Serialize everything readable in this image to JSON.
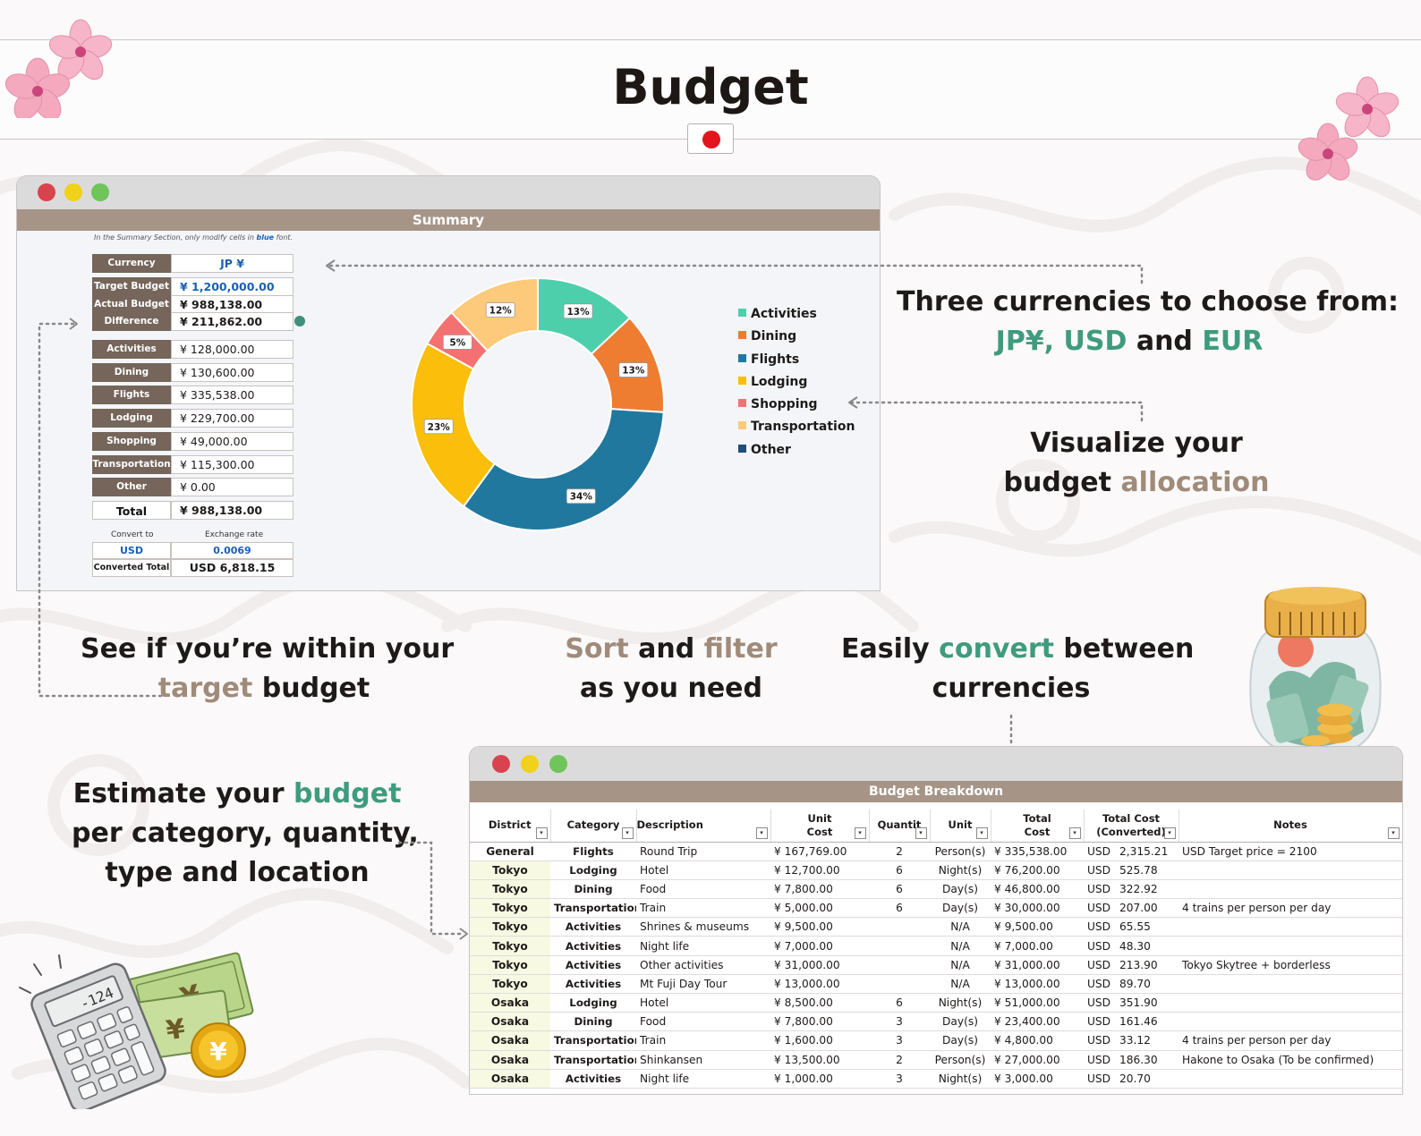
{
  "page": {
    "title": "Budget",
    "accent_teal": "#3f9b7e",
    "accent_taupe": "#a08b7a",
    "header_color": "#a69587"
  },
  "summary": {
    "window_title": "Summary",
    "note": {
      "before": "In the Summary Section, only modify cells in ",
      "highlight": "blue",
      "after": " font."
    },
    "currency": {
      "label": "Currency",
      "value": "JP ¥"
    },
    "budget": [
      {
        "label": "Target Budget",
        "value": "¥  1,200,000.00"
      },
      {
        "label": "Actual Budget",
        "value": "¥  988,138.00"
      },
      {
        "label": "Difference",
        "value": "¥  211,862.00"
      }
    ],
    "categories": [
      {
        "label": "Activities",
        "value": "¥  128,000.00"
      },
      {
        "label": "Dining",
        "value": "¥  130,600.00"
      },
      {
        "label": "Flights",
        "value": "¥  335,538.00"
      },
      {
        "label": "Lodging",
        "value": "¥  229,700.00"
      },
      {
        "label": "Shopping",
        "value": "¥  49,000.00"
      },
      {
        "label": "Transportation",
        "value": "¥  115,300.00"
      },
      {
        "label": "Other",
        "value": "¥  0.00"
      }
    ],
    "total": {
      "label": "Total",
      "value": "¥  988,138.00"
    },
    "conversion": {
      "convert_to_label": "Convert to",
      "exchange_rate_label": "Exchange rate",
      "currency": "USD",
      "rate": "0.0069",
      "converted_total_label": "Converted Total",
      "converted_total_value": "USD   6,818.15"
    }
  },
  "chart_data": {
    "type": "pie",
    "variant": "donut",
    "categories": [
      "Activities",
      "Dining",
      "Flights",
      "Lodging",
      "Shopping",
      "Transportation",
      "Other"
    ],
    "values": [
      13,
      13,
      34,
      23,
      5,
      12,
      0
    ],
    "labels": [
      "13%",
      "13%",
      "34%",
      "23%",
      "5%",
      "12%",
      ""
    ],
    "colors": [
      "#4ecfac",
      "#ee7d31",
      "#21789f",
      "#fbbe0a",
      "#f37271",
      "#fdc97b",
      "#1f4e79"
    ],
    "legend_position": "right"
  },
  "callouts": {
    "currencies": {
      "line1": "Three currencies to choose from:",
      "opt1": "JP¥, USD",
      "and": " and ",
      "opt2": "EUR"
    },
    "visualize": {
      "line1": "Visualize your",
      "line2a": "budget ",
      "line2b": "allocation"
    },
    "within": {
      "line1": "See if you’re within your",
      "line2a": "target",
      "line2b": " budget"
    },
    "sort": {
      "w1": "Sort",
      "w2": " and ",
      "w3": "filter",
      "line2": "as you need"
    },
    "convert": {
      "line1a": "Easily ",
      "line1b": "convert",
      "line1c": " between",
      "line2": "currencies"
    },
    "estimate": {
      "line1a": "Estimate your ",
      "line1b": "budget",
      "line2": "per category, quantity,",
      "line3": "type and location"
    }
  },
  "breakdown": {
    "window_title": "Budget Breakdown",
    "columns": [
      {
        "l1": "District",
        "l2": ""
      },
      {
        "l1": "Category",
        "l2": ""
      },
      {
        "l1": "Description",
        "l2": ""
      },
      {
        "l1": "Unit",
        "l2": "Cost"
      },
      {
        "l1": "Quantit",
        "l2": ""
      },
      {
        "l1": "Unit",
        "l2": ""
      },
      {
        "l1": "Total",
        "l2": "Cost"
      },
      {
        "l1": "Total Cost",
        "l2": "(Converted)"
      },
      {
        "l1": "Notes",
        "l2": ""
      }
    ],
    "rows": [
      {
        "district": "General",
        "category": "Flights",
        "description": "Round Trip",
        "unit_cost": "¥  167,769.00",
        "qty": "2",
        "unit": "Person(s)",
        "total": "¥  335,538.00",
        "conv_cur": "USD",
        "conv_val": "2,315.21",
        "notes": "USD Target price = 2100"
      },
      {
        "district": "Tokyo",
        "category": "Lodging",
        "description": "Hotel",
        "unit_cost": "¥  12,700.00",
        "qty": "6",
        "unit": "Night(s)",
        "total": "¥  76,200.00",
        "conv_cur": "USD",
        "conv_val": "525.78",
        "notes": ""
      },
      {
        "district": "Tokyo",
        "category": "Dining",
        "description": "Food",
        "unit_cost": "¥  7,800.00",
        "qty": "6",
        "unit": "Day(s)",
        "total": "¥  46,800.00",
        "conv_cur": "USD",
        "conv_val": "322.92",
        "notes": ""
      },
      {
        "district": "Tokyo",
        "category": "Transportation",
        "description": "Train",
        "unit_cost": "¥  5,000.00",
        "qty": "6",
        "unit": "Day(s)",
        "total": "¥  30,000.00",
        "conv_cur": "USD",
        "conv_val": "207.00",
        "notes": "4 trains per person per day"
      },
      {
        "district": "Tokyo",
        "category": "Activities",
        "description": "Shrines & museums",
        "unit_cost": "¥  9,500.00",
        "qty": "",
        "unit": "N/A",
        "total": "¥  9,500.00",
        "conv_cur": "USD",
        "conv_val": "65.55",
        "notes": ""
      },
      {
        "district": "Tokyo",
        "category": "Activities",
        "description": "Night life",
        "unit_cost": "¥  7,000.00",
        "qty": "",
        "unit": "N/A",
        "total": "¥  7,000.00",
        "conv_cur": "USD",
        "conv_val": "48.30",
        "notes": ""
      },
      {
        "district": "Tokyo",
        "category": "Activities",
        "description": "Other activities",
        "unit_cost": "¥  31,000.00",
        "qty": "",
        "unit": "N/A",
        "total": "¥  31,000.00",
        "conv_cur": "USD",
        "conv_val": "213.90",
        "notes": "Tokyo Skytree + borderless"
      },
      {
        "district": "Tokyo",
        "category": "Activities",
        "description": "Mt Fuji Day Tour",
        "unit_cost": "¥  13,000.00",
        "qty": "",
        "unit": "N/A",
        "total": "¥  13,000.00",
        "conv_cur": "USD",
        "conv_val": "89.70",
        "notes": ""
      },
      {
        "district": "Osaka",
        "category": "Lodging",
        "description": "Hotel",
        "unit_cost": "¥  8,500.00",
        "qty": "6",
        "unit": "Night(s)",
        "total": "¥  51,000.00",
        "conv_cur": "USD",
        "conv_val": "351.90",
        "notes": ""
      },
      {
        "district": "Osaka",
        "category": "Dining",
        "description": "Food",
        "unit_cost": "¥  7,800.00",
        "qty": "3",
        "unit": "Day(s)",
        "total": "¥  23,400.00",
        "conv_cur": "USD",
        "conv_val": "161.46",
        "notes": ""
      },
      {
        "district": "Osaka",
        "category": "Transportation",
        "description": "Train",
        "unit_cost": "¥  1,600.00",
        "qty": "3",
        "unit": "Day(s)",
        "total": "¥  4,800.00",
        "conv_cur": "USD",
        "conv_val": "33.12",
        "notes": "4 trains per person per day"
      },
      {
        "district": "Osaka",
        "category": "Transportation",
        "description": "Shinkansen",
        "unit_cost": "¥  13,500.00",
        "qty": "2",
        "unit": "Person(s)",
        "total": "¥  27,000.00",
        "conv_cur": "USD",
        "conv_val": "186.30",
        "notes": "Hakone to Osaka (To be confirmed)"
      },
      {
        "district": "Osaka",
        "category": "Activities",
        "description": "Night life",
        "unit_cost": "¥  1,000.00",
        "qty": "3",
        "unit": "Night(s)",
        "total": "¥  3,000.00",
        "conv_cur": "USD",
        "conv_val": "20.70",
        "notes": ""
      }
    ]
  },
  "icons": [
    "cherry-blossom-icon",
    "japan-flag-icon",
    "money-jar-icon",
    "calculator-icon",
    "yen-banknote-icon",
    "yen-coin-icon",
    "filter-dropdown-icon"
  ]
}
